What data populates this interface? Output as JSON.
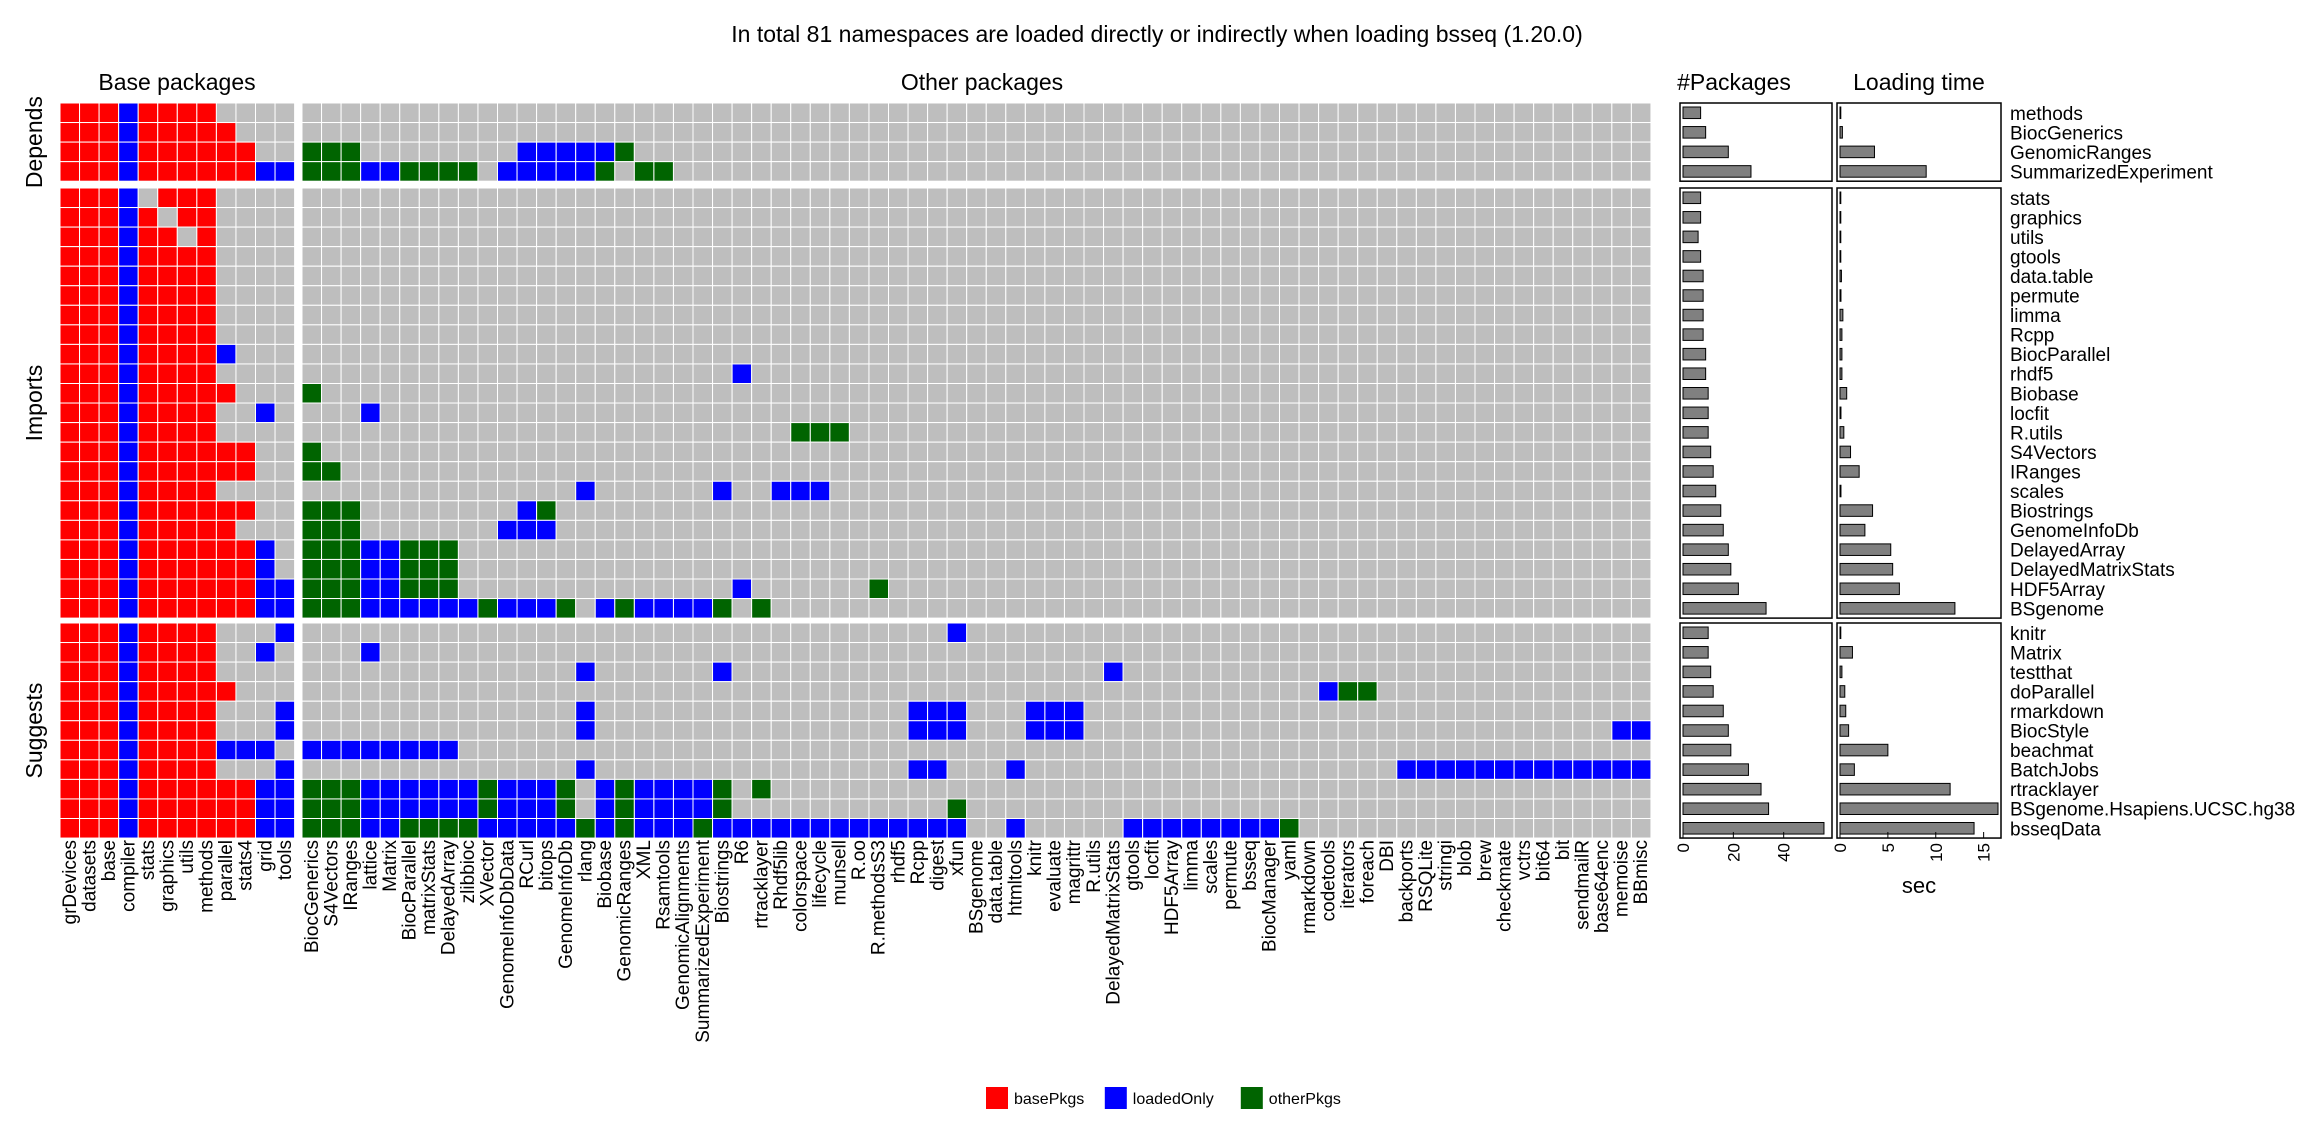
{
  "chart_data": {
    "type": "heatmap",
    "title": "In total 81 namespaces are loaded directly or indirectly when loading bsseq (1.20.0)",
    "panel_titles": {
      "base": "Base packages",
      "other": "Other packages",
      "count": "#Packages",
      "time": "Loading time"
    },
    "time_xlabel": "sec",
    "count_ticks": [
      0,
      20,
      40
    ],
    "count_xlim": [
      0,
      58
    ],
    "time_ticks": [
      0,
      5,
      10,
      15
    ],
    "time_xlim": [
      0,
      16.5
    ],
    "legend": [
      {
        "label": "basePkgs",
        "color": "#ff0000"
      },
      {
        "label": "loadedOnly",
        "color": "#0000ff"
      },
      {
        "label": "otherPkgs",
        "color": "#006400"
      }
    ],
    "empty_color": "#bebebe",
    "base_packages": [
      "grDevices",
      "datasets",
      "base",
      "compiler",
      "stats",
      "graphics",
      "utils",
      "methods",
      "parallel",
      "stats4",
      "grid",
      "tools"
    ],
    "other_packages": [
      "BiocGenerics",
      "S4Vectors",
      "IRanges",
      "lattice",
      "Matrix",
      "BiocParallel",
      "matrixStats",
      "DelayedArray",
      "zlibbioc",
      "XVector",
      "GenomeInfoDbData",
      "RCurl",
      "bitops",
      "GenomeInfoDb",
      "rlang",
      "Biobase",
      "GenomicRanges",
      "XML",
      "Rsamtools",
      "GenomicAlignments",
      "SummarizedExperiment",
      "Biostrings",
      "R6",
      "rtracklayer",
      "Rhdf5lib",
      "colorspace",
      "lifecycle",
      "munsell",
      "R.oo",
      "R.methodsS3",
      "rhdf5",
      "Rcpp",
      "digest",
      "xfun",
      "BSgenome",
      "data.table",
      "htmltools",
      "knitr",
      "evaluate",
      "magrittr",
      "R.utils",
      "DelayedMatrixStats",
      "gtools",
      "locfit",
      "HDF5Array",
      "limma",
      "scales",
      "permute",
      "bsseq",
      "BiocManager",
      "yaml",
      "rmarkdown",
      "codetools",
      "iterators",
      "foreach",
      "DBI",
      "backports",
      "RSQLite",
      "stringi",
      "blob",
      "brew",
      "checkmate",
      "vctrs",
      "bit64",
      "bit",
      "sendmailR",
      "base64enc",
      "memoise",
      "BBmisc"
    ],
    "groups": [
      {
        "name": "Depends",
        "rows": [
          {
            "package": "methods",
            "count": 7,
            "time": 0.0,
            "base": "rrrbrrrr",
            "other": ""
          },
          {
            "package": "BiocGenerics",
            "count": 9,
            "time": 0.25,
            "base": "rrrbrrrrr",
            "other": ""
          },
          {
            "package": "GenomicRanges",
            "count": 18,
            "time": 3.6,
            "base": "rrrbrrrrrr",
            "other": "ggg........bbbbbg"
          },
          {
            "package": "SummarizedExperiment",
            "count": 27,
            "time": 9.0,
            "base": "rrrbrrrrrrbb",
            "other": "gggbbgggg.bbbbbg.gg"
          }
        ]
      },
      {
        "name": "Imports",
        "rows": [
          {
            "package": "stats",
            "count": 7,
            "time": 0.0,
            "base": "rrrb.rrr",
            "other": ""
          },
          {
            "package": "graphics",
            "count": 7,
            "time": 0.0,
            "base": "rrrbr.rr",
            "other": ""
          },
          {
            "package": "utils",
            "count": 6,
            "time": 0.0,
            "base": "rrrbrr.r",
            "other": ""
          },
          {
            "package": "gtools",
            "count": 7,
            "time": 0.0,
            "base": "rrrbrrrr",
            "other": ""
          },
          {
            "package": "data.table",
            "count": 8,
            "time": 0.15,
            "base": "rrrbrrrr",
            "other": ""
          },
          {
            "package": "permute",
            "count": 8,
            "time": 0.1,
            "base": "rrrbrrrr",
            "other": ""
          },
          {
            "package": "limma",
            "count": 8,
            "time": 0.3,
            "base": "rrrbrrrr",
            "other": ""
          },
          {
            "package": "Rcpp",
            "count": 8,
            "time": 0.2,
            "base": "rrrbrrrr",
            "other": ""
          },
          {
            "package": "BiocParallel",
            "count": 9,
            "time": 0.2,
            "base": "rrrbrrrrb",
            "other": ""
          },
          {
            "package": "rhdf5",
            "count": 9,
            "time": 0.2,
            "base": "rrrbrrrr",
            "other": "......................b"
          },
          {
            "package": "Biobase",
            "count": 10,
            "time": 0.7,
            "base": "rrrbrrrrr",
            "other": "g"
          },
          {
            "package": "locfit",
            "count": 10,
            "time": 0.1,
            "base": "rrrbrrrr..b",
            "other": "...b"
          },
          {
            "package": "R.utils",
            "count": 10,
            "time": 0.4,
            "base": "rrrbrrrr",
            "other": ".........................ggg"
          },
          {
            "package": "S4Vectors",
            "count": 11,
            "time": 1.1,
            "base": "rrrbrrrrrr",
            "other": "g"
          },
          {
            "package": "IRanges",
            "count": 12,
            "time": 2.0,
            "base": "rrrbrrrrrr",
            "other": "gg"
          },
          {
            "package": "scales",
            "count": 13,
            "time": 0.1,
            "base": "rrrbrrrr",
            "other": "..............b......b..bbb"
          },
          {
            "package": "Biostrings",
            "count": 15,
            "time": 3.4,
            "base": "rrrbrrrrrr",
            "other": "ggg........bg"
          },
          {
            "package": "GenomeInfoDb",
            "count": 16,
            "time": 2.6,
            "base": "rrrbrrrrr",
            "other": "ggg.......bbb"
          },
          {
            "package": "DelayedArray",
            "count": 18,
            "time": 5.3,
            "base": "rrrbrrrrrrb",
            "other": "gggbbggg"
          },
          {
            "package": "DelayedMatrixStats",
            "count": 19,
            "time": 5.5,
            "base": "rrrbrrrrrrb",
            "other": "gggbbggg"
          },
          {
            "package": "HDF5Array",
            "count": 22,
            "time": 6.2,
            "base": "rrrbrrrrrrbb",
            "other": "gggbbggg..............b......g"
          },
          {
            "package": "BSgenome",
            "count": 33,
            "time": 12.0,
            "base": "rrrbrrrrrrbb",
            "other": "gggbbbbbbgbbbg.bgbbbbg.g"
          }
        ]
      },
      {
        "name": "Suggests",
        "rows": [
          {
            "package": "knitr",
            "count": 10,
            "time": 0.0,
            "base": "rrrbrrrr...b",
            "other": ".................................b"
          },
          {
            "package": "Matrix",
            "count": 10,
            "time": 1.3,
            "base": "rrrbrrrr..b",
            "other": "...b"
          },
          {
            "package": "testthat",
            "count": 11,
            "time": 0.2,
            "base": "rrrbrrrr",
            "other": "..............b......b...................b"
          },
          {
            "package": "doParallel",
            "count": 12,
            "time": 0.5,
            "base": "rrrbrrrrr",
            "other": "....................................................bgg"
          },
          {
            "package": "rmarkdown",
            "count": 16,
            "time": 0.6,
            "base": "rrrbrrrr...b",
            "other": "..............b................bbb...bbb"
          },
          {
            "package": "BiocStyle",
            "count": 18,
            "time": 0.9,
            "base": "rrrbrrrr...b",
            "other": "..............b................bbb...bbb...........................bbb"
          },
          {
            "package": "beachmat",
            "count": 19,
            "time": 5.0,
            "base": "rrrbrrrrbbb",
            "other": "bbbbbbbb"
          },
          {
            "package": "BatchJobs",
            "count": 26,
            "time": 1.5,
            "base": "rrrbrrrr...b",
            "other": "..............b................bb...b...................bbbbbbbbbbbbbbg"
          },
          {
            "package": "rtracklayer",
            "count": 31,
            "time": 11.5,
            "base": "rrrbrrrrrrbb",
            "other": "gggbbbbbbgbbbg.bgbbbbg.g"
          },
          {
            "package": "BSgenome.Hsapiens.UCSC.hg38",
            "count": 34,
            "time": 16.5,
            "base": "rrrbrrrrrrbb",
            "other": "gggbbbbbbgbbbg.bgbbbbg...........g"
          },
          {
            "package": "bsseqData",
            "count": 56,
            "time": 14.0,
            "base": "rrrbrrrrrrbb",
            "other": "gggbbggggbbbbbgbgbbbgbbbbbbbbbbbbb..b.....bbbbbbbbg"
          }
        ]
      }
    ]
  }
}
